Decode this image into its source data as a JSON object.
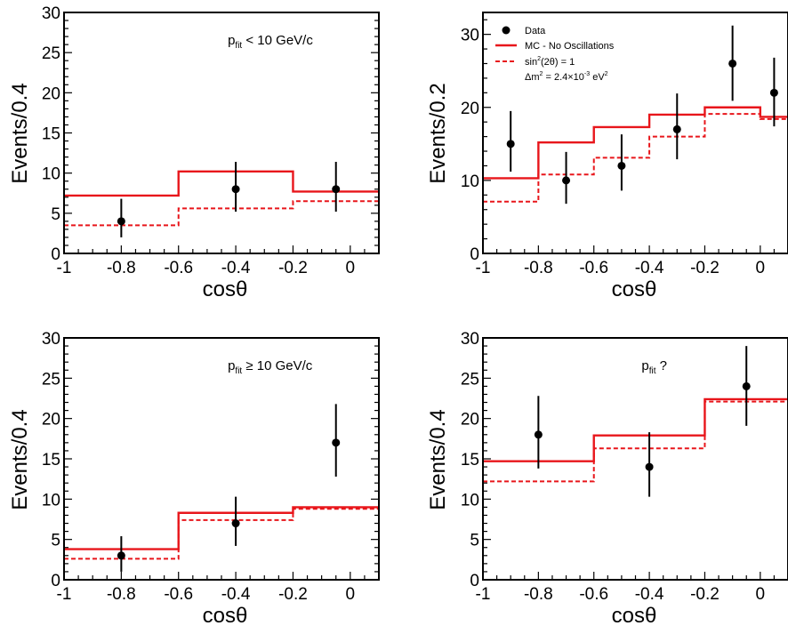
{
  "chart_data": [
    {
      "type": "line",
      "panel": "top-left",
      "xlabel": "cosθ",
      "ylabel": "Events/0.4",
      "xlim": [
        -1,
        0.1
      ],
      "ylim": [
        0,
        30
      ],
      "xticks": [
        "-1",
        "-0.8",
        "-0.6",
        "-0.4",
        "-0.2",
        "0"
      ],
      "yticks": [
        "0",
        "5",
        "10",
        "15",
        "20",
        "25",
        "30"
      ],
      "annotation": {
        "main": "p",
        "sub": "fit",
        "rest": " < 10 GeV/c"
      },
      "data_points": [
        {
          "x": -0.8,
          "y": 4,
          "yerr": [
            2,
            2.8
          ]
        },
        {
          "x": -0.4,
          "y": 8,
          "yerr": [
            2.8,
            3.4
          ]
        },
        {
          "x": -0.05,
          "y": 8,
          "yerr": [
            2.8,
            3.4
          ]
        }
      ],
      "series": [
        {
          "name": "MC - No Oscillations",
          "bin_edges": [
            -1,
            -0.6,
            -0.2,
            0.1
          ],
          "values": [
            7.2,
            10.2,
            7.7
          ]
        },
        {
          "name": "sin²(2θ) = 1, Δm² = 2.4×10⁻³ eV²",
          "bin_edges": [
            -1,
            -0.6,
            -0.2,
            0.1
          ],
          "values": [
            3.5,
            5.6,
            6.5
          ]
        }
      ]
    },
    {
      "type": "line",
      "panel": "top-right",
      "xlabel": "cosθ",
      "ylabel": "Events/0.2",
      "xlim": [
        -1,
        0.1
      ],
      "ylim": [
        0,
        33
      ],
      "xticks": [
        "-1",
        "-0.8",
        "-0.6",
        "-0.4",
        "-0.2",
        "0"
      ],
      "yticks": [
        "0",
        "10",
        "20",
        "30"
      ],
      "legend": {
        "position": "top-left",
        "data": "Data",
        "mc": "MC - No Oscillations",
        "osc_line1": {
          "main": "sin",
          "sup1": "2",
          "rest": "(2θ) = 1"
        },
        "osc_line2": {
          "pre": "Δm",
          "sup1": "2",
          "mid": " = 2.4×10",
          "sup2": "-3",
          "post": " eV",
          "sup3": "2"
        }
      },
      "data_points": [
        {
          "x": -0.9,
          "y": 15,
          "yerr": [
            3.8,
            4.5
          ]
        },
        {
          "x": -0.7,
          "y": 10,
          "yerr": [
            3.2,
            3.9
          ]
        },
        {
          "x": -0.5,
          "y": 12,
          "yerr": [
            3.4,
            4.3
          ]
        },
        {
          "x": -0.3,
          "y": 17,
          "yerr": [
            4.1,
            4.9
          ]
        },
        {
          "x": -0.1,
          "y": 26,
          "yerr": [
            5.1,
            5.2
          ]
        },
        {
          "x": 0.05,
          "y": 22,
          "yerr": [
            4.6,
            4.8
          ]
        }
      ],
      "series": [
        {
          "name": "MC - No Oscillations",
          "bin_edges": [
            -1,
            -0.8,
            -0.6,
            -0.4,
            -0.2,
            0,
            0.1
          ],
          "values": [
            10.3,
            15.2,
            17.3,
            19,
            20,
            18.7
          ]
        },
        {
          "name": "sin²(2θ) = 1",
          "bin_edges": [
            -1,
            -0.8,
            -0.6,
            -0.4,
            -0.2,
            0,
            0.1
          ],
          "values": [
            7.1,
            10.8,
            13.1,
            16,
            19.1,
            18.4
          ]
        }
      ]
    },
    {
      "type": "line",
      "panel": "bottom-left",
      "xlabel": "cosθ",
      "ylabel": "Events/0.4",
      "xlim": [
        -1,
        0.1
      ],
      "ylim": [
        0,
        30
      ],
      "xticks": [
        "-1",
        "-0.8",
        "-0.6",
        "-0.4",
        "-0.2",
        "0"
      ],
      "yticks": [
        "0",
        "5",
        "10",
        "15",
        "20",
        "25",
        "30"
      ],
      "annotation": {
        "main": "p",
        "sub": "fit",
        "rest": " ≥ 10 GeV/c"
      },
      "data_points": [
        {
          "x": -0.8,
          "y": 3,
          "yerr": [
            2,
            2.4
          ]
        },
        {
          "x": -0.4,
          "y": 7,
          "yerr": [
            2.8,
            3.3
          ]
        },
        {
          "x": -0.05,
          "y": 17,
          "yerr": [
            4.2,
            4.8
          ]
        }
      ],
      "series": [
        {
          "name": "MC - No Oscillations",
          "bin_edges": [
            -1,
            -0.6,
            -0.2,
            0.1
          ],
          "values": [
            3.8,
            8.3,
            9
          ]
        },
        {
          "name": "sin²(2θ) = 1",
          "bin_edges": [
            -1,
            -0.6,
            -0.2,
            0.1
          ],
          "values": [
            2.6,
            7.4,
            8.8
          ]
        }
      ]
    },
    {
      "type": "line",
      "panel": "bottom-right",
      "xlabel": "cosθ",
      "ylabel": "Events/0.4",
      "xlim": [
        -1,
        0.1
      ],
      "ylim": [
        0,
        30
      ],
      "xticks": [
        "-1",
        "-0.8",
        "-0.6",
        "-0.4",
        "-0.2",
        "0"
      ],
      "yticks": [
        "0",
        "5",
        "10",
        "15",
        "20",
        "25",
        "30"
      ],
      "annotation": {
        "main": "p",
        "sub": "fit",
        "rest": " ?"
      },
      "data_points": [
        {
          "x": -0.8,
          "y": 18,
          "yerr": [
            4.2,
            4.8
          ]
        },
        {
          "x": -0.4,
          "y": 14,
          "yerr": [
            3.7,
            4.3
          ]
        },
        {
          "x": -0.05,
          "y": 24,
          "yerr": [
            4.9,
            5
          ]
        }
      ],
      "series": [
        {
          "name": "MC - No Oscillations",
          "bin_edges": [
            -1,
            -0.6,
            -0.2,
            0.1
          ],
          "values": [
            14.7,
            17.9,
            22.4
          ]
        },
        {
          "name": "sin²(2θ) = 1",
          "bin_edges": [
            -1,
            -0.6,
            -0.2,
            0.1
          ],
          "values": [
            12.2,
            16.3,
            22.1
          ]
        }
      ]
    }
  ]
}
